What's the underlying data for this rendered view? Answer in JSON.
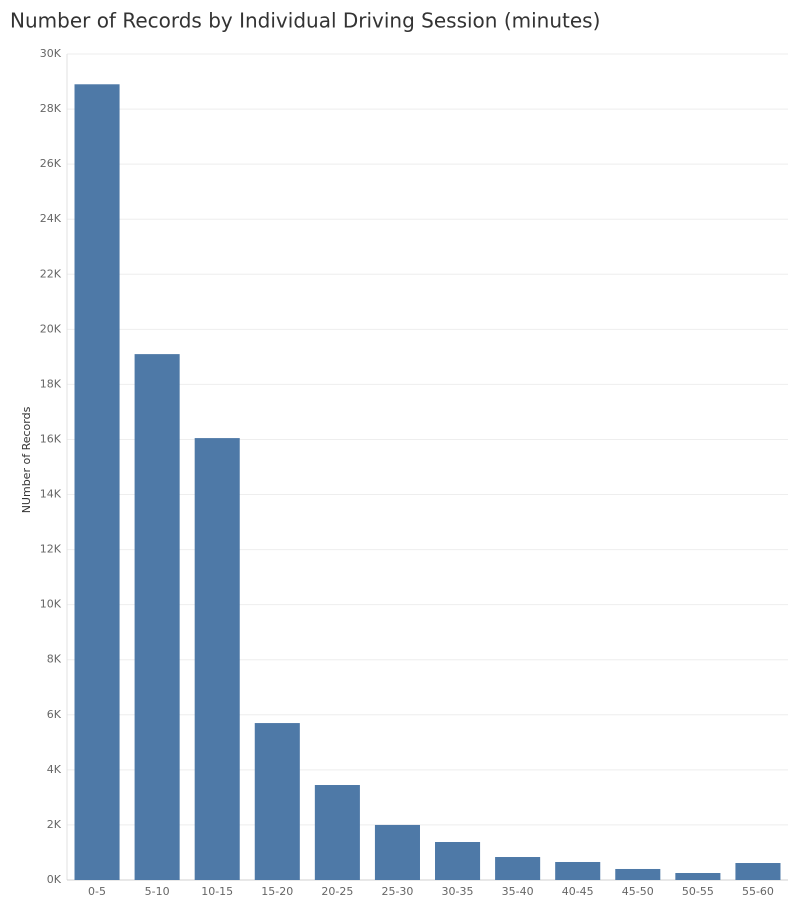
{
  "chart_data": {
    "type": "bar",
    "title": "Number of Records by Individual Driving Session (minutes)",
    "y_label": "NUmber of Records",
    "categories": [
      "0-5",
      "5-10",
      "10-15",
      "15-20",
      "20-25",
      "25-30",
      "30-35",
      "35-40",
      "40-45",
      "45-50",
      "50-55",
      "55-60"
    ],
    "values": [
      28900,
      19100,
      16050,
      5700,
      3450,
      2000,
      1380,
      835,
      654,
      400,
      254,
      617
    ],
    "color": "#4e79a7",
    "ylim": [
      0,
      30000
    ],
    "yticks": [
      {
        "value": 0,
        "label": "0K"
      },
      {
        "value": 2000,
        "label": "2K"
      },
      {
        "value": 4000,
        "label": "4K"
      },
      {
        "value": 6000,
        "label": "6K"
      },
      {
        "value": 8000,
        "label": "8K"
      },
      {
        "value": 10000,
        "label": "10K"
      },
      {
        "value": 12000,
        "label": "12K"
      },
      {
        "value": 14000,
        "label": "14K"
      },
      {
        "value": 16000,
        "label": "16K"
      },
      {
        "value": 18000,
        "label": "18K"
      },
      {
        "value": 20000,
        "label": "20K"
      },
      {
        "value": 22000,
        "label": "22K"
      },
      {
        "value": 24000,
        "label": "24K"
      },
      {
        "value": 26000,
        "label": "26K"
      },
      {
        "value": 28000,
        "label": "28K"
      },
      {
        "value": 30000,
        "label": "30K"
      }
    ],
    "grid": true
  }
}
